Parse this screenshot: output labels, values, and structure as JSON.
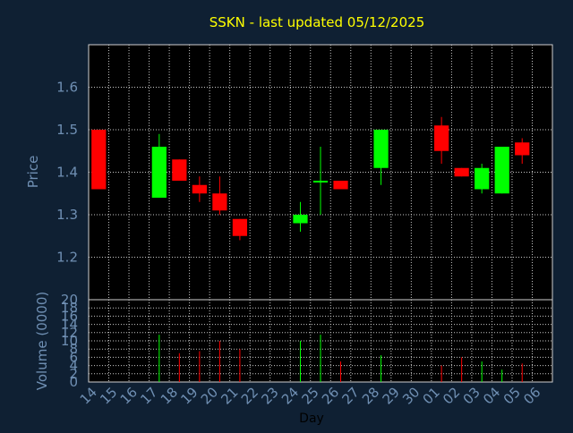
{
  "chart_data": [
    {
      "type": "candlestick",
      "title": "SSKN - last updated 05/12/2025",
      "ylabel": "Price",
      "ylim": [
        1.1,
        1.7
      ],
      "yticks": [
        "1.2",
        "1.3",
        "1.4",
        "1.5",
        "1.6"
      ],
      "grid": true,
      "up_color": "#00ff00",
      "down_color": "#ff0000",
      "candles": [
        {
          "day": "14",
          "open": 1.5,
          "high": 1.5,
          "low": 1.36,
          "close": 1.36
        },
        {
          "day": "17",
          "open": 1.34,
          "high": 1.49,
          "low": 1.34,
          "close": 1.46
        },
        {
          "day": "18",
          "open": 1.43,
          "high": 1.43,
          "low": 1.38,
          "close": 1.38
        },
        {
          "day": "19",
          "open": 1.37,
          "high": 1.39,
          "low": 1.33,
          "close": 1.35
        },
        {
          "day": "20",
          "open": 1.35,
          "high": 1.39,
          "low": 1.3,
          "close": 1.31
        },
        {
          "day": "21",
          "open": 1.29,
          "high": 1.29,
          "low": 1.24,
          "close": 1.25
        },
        {
          "day": "24",
          "open": 1.28,
          "high": 1.33,
          "low": 1.26,
          "close": 1.3
        },
        {
          "day": "25",
          "open": 1.38,
          "high": 1.46,
          "low": 1.3,
          "close": 1.38
        },
        {
          "day": "26",
          "open": 1.38,
          "high": 1.38,
          "low": 1.36,
          "close": 1.36
        },
        {
          "day": "28",
          "open": 1.41,
          "high": 1.5,
          "low": 1.37,
          "close": 1.5
        },
        {
          "day": "01",
          "open": 1.51,
          "high": 1.53,
          "low": 1.42,
          "close": 1.45
        },
        {
          "day": "02",
          "open": 1.41,
          "high": 1.41,
          "low": 1.39,
          "close": 1.39
        },
        {
          "day": "03",
          "open": 1.36,
          "high": 1.42,
          "low": 1.35,
          "close": 1.41
        },
        {
          "day": "04",
          "open": 1.35,
          "high": 1.46,
          "low": 1.35,
          "close": 1.46
        },
        {
          "day": "05",
          "open": 1.47,
          "high": 1.48,
          "low": 1.42,
          "close": 1.44
        }
      ]
    },
    {
      "type": "bar",
      "ylabel": "Volume (0000)",
      "xlabel": "Day",
      "ylim": [
        0,
        20
      ],
      "yticks": [
        "0",
        "2",
        "4",
        "6",
        "8",
        "10",
        "12",
        "14",
        "16",
        "18",
        "20"
      ],
      "xticks": [
        "14",
        "15",
        "16",
        "17",
        "18",
        "19",
        "20",
        "21",
        "22",
        "23",
        "24",
        "25",
        "26",
        "27",
        "28",
        "29",
        "30",
        "01",
        "02",
        "03",
        "04",
        "05",
        "06"
      ],
      "grid": true,
      "bars": [
        {
          "day": "17",
          "value": 11.5,
          "direction": "up"
        },
        {
          "day": "18",
          "value": 7,
          "direction": "down"
        },
        {
          "day": "19",
          "value": 7.5,
          "direction": "down"
        },
        {
          "day": "20",
          "value": 10,
          "direction": "down"
        },
        {
          "day": "21",
          "value": 8,
          "direction": "down"
        },
        {
          "day": "24",
          "value": 10,
          "direction": "up"
        },
        {
          "day": "25",
          "value": 11.5,
          "direction": "up"
        },
        {
          "day": "26",
          "value": 5,
          "direction": "down"
        },
        {
          "day": "28",
          "value": 6.5,
          "direction": "up"
        },
        {
          "day": "01",
          "value": 4,
          "direction": "down"
        },
        {
          "day": "02",
          "value": 6,
          "direction": "down"
        },
        {
          "day": "03",
          "value": 5,
          "direction": "up"
        },
        {
          "day": "04",
          "value": 3,
          "direction": "up"
        },
        {
          "day": "05",
          "value": 4.5,
          "direction": "down"
        }
      ]
    }
  ]
}
